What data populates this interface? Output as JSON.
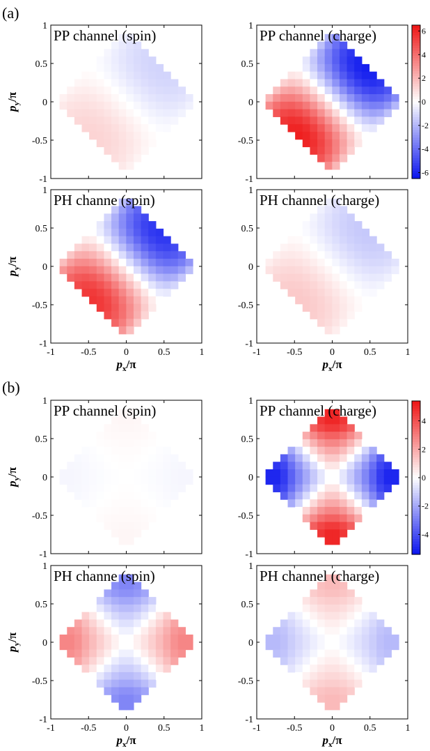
{
  "panel_labels": [
    "(a)",
    "(b)"
  ],
  "axis_labels": {
    "x": "p",
    "x_sub": "x",
    "y": "p",
    "y_sub": "y",
    "unit": "/π"
  },
  "ticks": [
    "-1",
    "-0.5",
    "0",
    "0.5",
    "1"
  ],
  "colorbars": [
    {
      "ticks": [
        "6",
        "4",
        "2",
        "0",
        "-2",
        "-4",
        "-6"
      ],
      "min": -6.5,
      "max": 6.5
    },
    {
      "ticks": [
        "4",
        "2",
        "0",
        "-2",
        "-4"
      ],
      "min": -5.4,
      "max": 5.4
    }
  ],
  "colors": {
    "negative": "#0a14ee",
    "zero": "#ffffff",
    "positive": "#ee1414",
    "frame": "#000000"
  },
  "chart_data": [
    {
      "type": "heatmap",
      "group": "(a)",
      "title": "PP channel (spin)",
      "pattern": "diag",
      "amplitude": 1.2,
      "xlim": [
        -1,
        1
      ],
      "ylim": [
        -1,
        1
      ]
    },
    {
      "type": "heatmap",
      "group": "(a)",
      "title": "PP channel (charge)",
      "pattern": "diag",
      "amplitude": 6.2,
      "xlim": [
        -1,
        1
      ],
      "ylim": [
        -1,
        1
      ]
    },
    {
      "type": "heatmap",
      "group": "(a)",
      "title": "PH channe (spin)",
      "pattern": "diag",
      "amplitude": 5.6,
      "xlim": [
        -1,
        1
      ],
      "ylim": [
        -1,
        1
      ]
    },
    {
      "type": "heatmap",
      "group": "(a)",
      "title": "PH channel (charge)",
      "pattern": "diag",
      "amplitude": 1.5,
      "xlim": [
        -1,
        1
      ],
      "ylim": [
        -1,
        1
      ]
    },
    {
      "type": "heatmap",
      "group": "(b)",
      "title": "PP channel (spin)",
      "pattern": "dwave",
      "amplitude": 0.2,
      "xlim": [
        -1,
        1
      ],
      "ylim": [
        -1,
        1
      ]
    },
    {
      "type": "heatmap",
      "group": "(b)",
      "title": "PP channel (charge)",
      "pattern": "dwave",
      "amplitude": 5.0,
      "xlim": [
        -1,
        1
      ],
      "ylim": [
        -1,
        1
      ]
    },
    {
      "type": "heatmap",
      "group": "(b)",
      "title": "PH channe (spin)",
      "pattern": "dwave",
      "amplitude": -2.8,
      "xlim": [
        -1,
        1
      ],
      "ylim": [
        -1,
        1
      ]
    },
    {
      "type": "heatmap",
      "group": "(b)",
      "title": "PH channel (charge)",
      "pattern": "dwave",
      "amplitude": 1.6,
      "xlim": [
        -1,
        1
      ],
      "ylim": [
        -1,
        1
      ]
    }
  ]
}
